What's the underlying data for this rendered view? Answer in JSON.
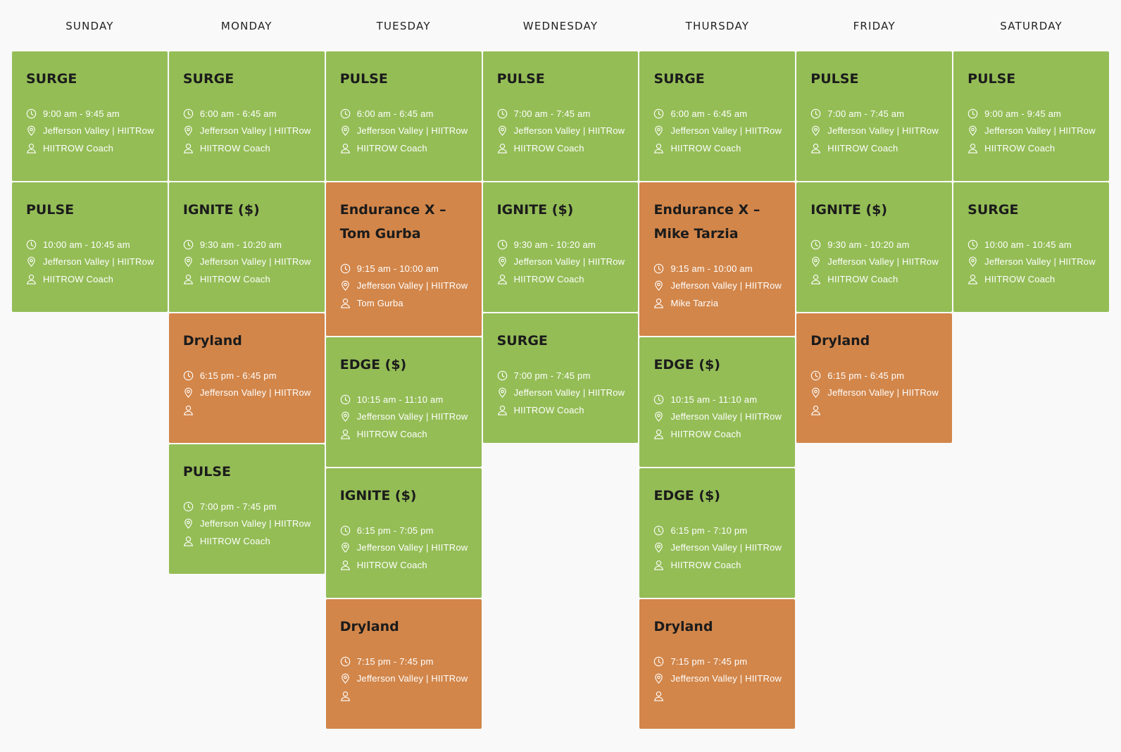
{
  "days": [
    {
      "name": "SUNDAY",
      "classes": [
        {
          "title": "SURGE",
          "time": "9:00 am - 9:45 am",
          "location": "Jefferson Valley | HIITRow",
          "coach": "HIITROW Coach",
          "color": "green"
        },
        {
          "title": "PULSE",
          "time": "10:00 am - 10:45 am",
          "location": "Jefferson Valley | HIITRow",
          "coach": "HIITROW Coach",
          "color": "green"
        }
      ]
    },
    {
      "name": "MONDAY",
      "classes": [
        {
          "title": "SURGE",
          "time": "6:00 am - 6:45 am",
          "location": "Jefferson Valley | HIITRow",
          "coach": "HIITROW Coach",
          "color": "green"
        },
        {
          "title": "IGNITE ($)",
          "time": "9:30 am - 10:20 am",
          "location": "Jefferson Valley | HIITRow",
          "coach": "HIITROW Coach",
          "color": "green"
        },
        {
          "title": "Dryland",
          "time": "6:15 pm - 6:45 pm",
          "location": "Jefferson Valley | HIITRow",
          "coach": "",
          "color": "orange"
        },
        {
          "title": "PULSE",
          "time": "7:00 pm - 7:45 pm",
          "location": "Jefferson Valley | HIITRow",
          "coach": "HIITROW Coach",
          "color": "green"
        }
      ]
    },
    {
      "name": "TUESDAY",
      "classes": [
        {
          "title": "PULSE",
          "time": "6:00 am - 6:45 am",
          "location": "Jefferson Valley | HIITRow",
          "coach": "HIITROW Coach",
          "color": "green"
        },
        {
          "title": "Endurance X – Tom Gurba",
          "time": "9:15 am - 10:00 am",
          "location": "Jefferson Valley | HIITRow",
          "coach": "Tom Gurba",
          "color": "orange",
          "tall": true
        },
        {
          "title": "EDGE ($)",
          "time": "10:15 am - 11:10 am",
          "location": "Jefferson Valley | HIITRow",
          "coach": "HIITROW Coach",
          "color": "green"
        },
        {
          "title": "IGNITE ($)",
          "time": "6:15 pm - 7:05 pm",
          "location": "Jefferson Valley | HIITRow",
          "coach": "HIITROW Coach",
          "color": "green"
        },
        {
          "title": "Dryland",
          "time": "7:15 pm - 7:45 pm",
          "location": "Jefferson Valley | HIITRow",
          "coach": "",
          "color": "orange"
        }
      ]
    },
    {
      "name": "WEDNESDAY",
      "classes": [
        {
          "title": "PULSE",
          "time": "7:00 am - 7:45 am",
          "location": "Jefferson Valley | HIITRow",
          "coach": "HIITROW Coach",
          "color": "green"
        },
        {
          "title": "IGNITE ($)",
          "time": "9:30 am - 10:20 am",
          "location": "Jefferson Valley | HIITRow",
          "coach": "HIITROW Coach",
          "color": "green"
        },
        {
          "title": "SURGE",
          "time": "7:00 pm - 7:45 pm",
          "location": "Jefferson Valley | HIITRow",
          "coach": "HIITROW Coach",
          "color": "green"
        }
      ]
    },
    {
      "name": "THURSDAY",
      "classes": [
        {
          "title": "SURGE",
          "time": "6:00 am - 6:45 am",
          "location": "Jefferson Valley | HIITRow",
          "coach": "HIITROW Coach",
          "color": "green"
        },
        {
          "title": "Endurance X – Mike Tarzia",
          "time": "9:15 am - 10:00 am",
          "location": "Jefferson Valley | HIITRow",
          "coach": "Mike Tarzia",
          "color": "orange",
          "tall": true
        },
        {
          "title": "EDGE ($)",
          "time": "10:15 am - 11:10 am",
          "location": "Jefferson Valley | HIITRow",
          "coach": "HIITROW Coach",
          "color": "green"
        },
        {
          "title": "EDGE ($)",
          "time": "6:15 pm - 7:10 pm",
          "location": "Jefferson Valley | HIITRow",
          "coach": "HIITROW Coach",
          "color": "green"
        },
        {
          "title": "Dryland",
          "time": "7:15 pm - 7:45 pm",
          "location": "Jefferson Valley | HIITRow",
          "coach": "",
          "color": "orange"
        }
      ]
    },
    {
      "name": "FRIDAY",
      "classes": [
        {
          "title": "PULSE",
          "time": "7:00 am - 7:45 am",
          "location": "Jefferson Valley | HIITRow",
          "coach": "HIITROW Coach",
          "color": "green"
        },
        {
          "title": "IGNITE ($)",
          "time": "9:30 am - 10:20 am",
          "location": "Jefferson Valley | HIITRow",
          "coach": "HIITROW Coach",
          "color": "green"
        },
        {
          "title": "Dryland",
          "time": "6:15 pm - 6:45 pm",
          "location": "Jefferson Valley | HIITRow",
          "coach": "",
          "color": "orange"
        }
      ]
    },
    {
      "name": "SATURDAY",
      "classes": [
        {
          "title": "PULSE",
          "time": "9:00 am - 9:45 am",
          "location": "Jefferson Valley | HIITRow",
          "coach": "HIITROW Coach",
          "color": "green"
        },
        {
          "title": "SURGE",
          "time": "10:00 am - 10:45 am",
          "location": "Jefferson Valley | HIITRow",
          "coach": "HIITROW Coach",
          "color": "green"
        }
      ]
    }
  ],
  "colors": {
    "green": "#94bd56",
    "orange": "#d2864a",
    "title_text": "#1b1b1b",
    "info_text": "#ffffff"
  },
  "icons": {
    "time": "clock-icon",
    "location": "map-pin-icon",
    "coach": "user-icon"
  }
}
